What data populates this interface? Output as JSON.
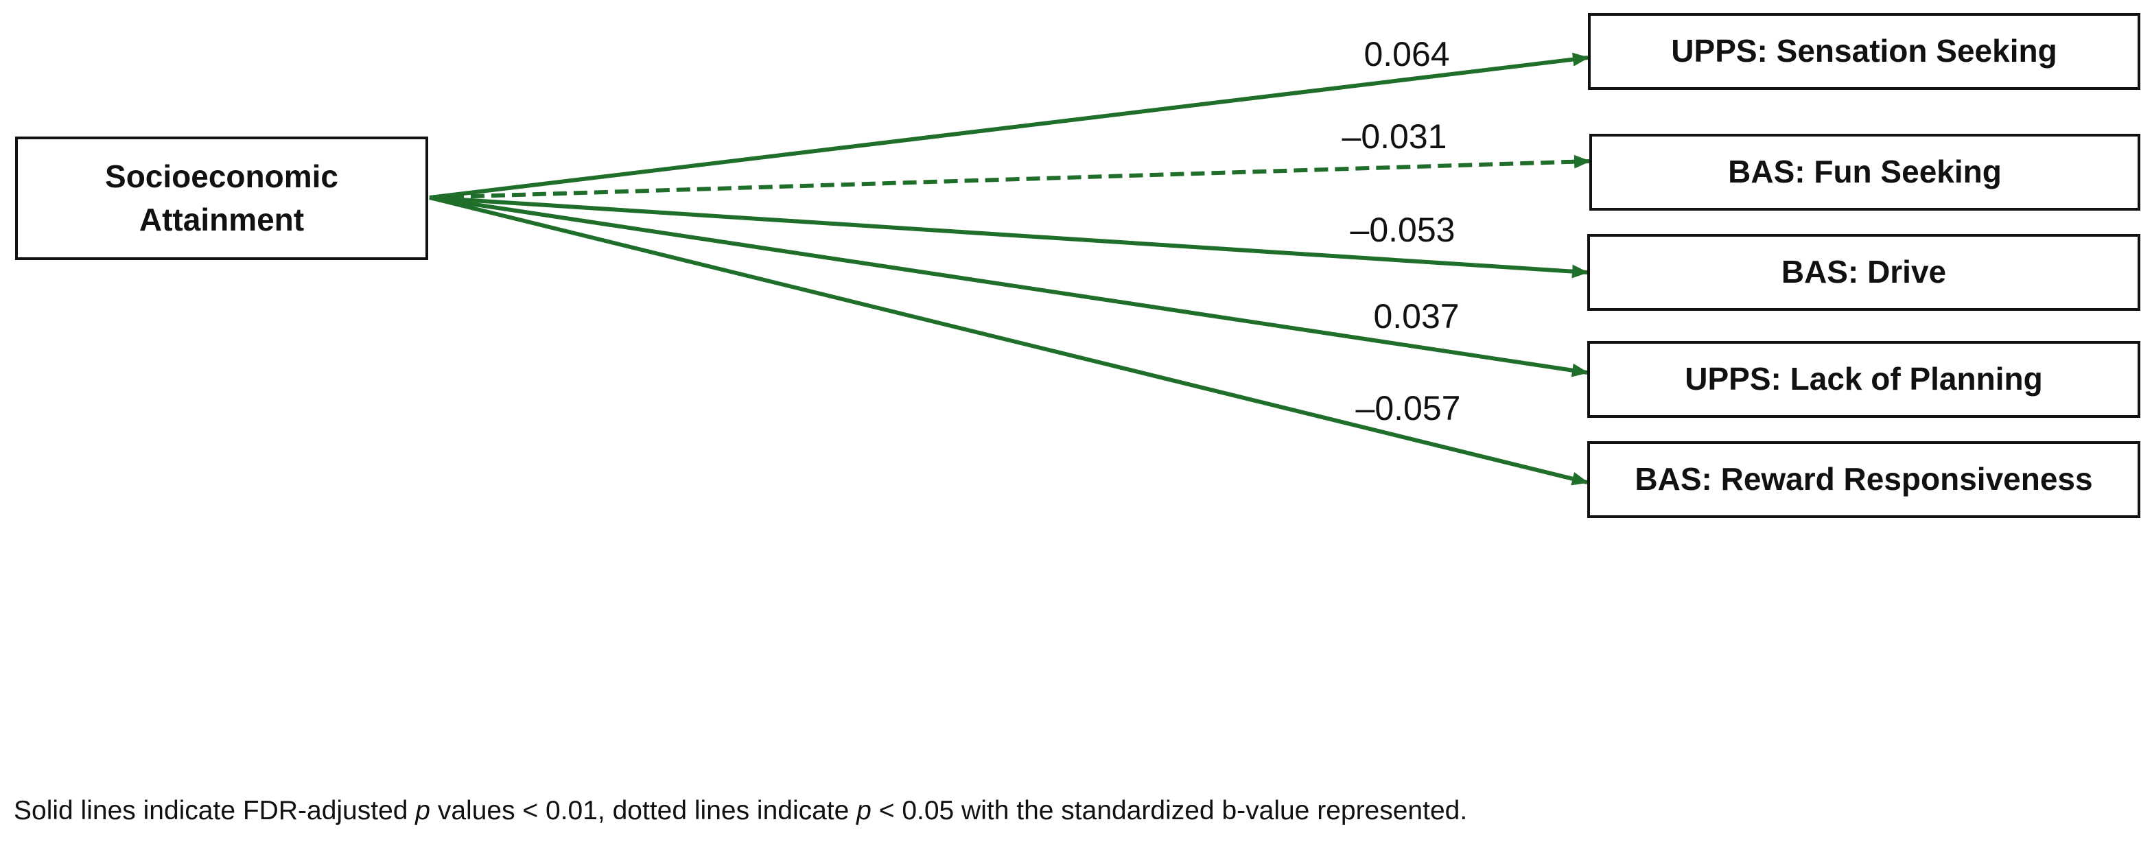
{
  "diagram": {
    "source": {
      "line1": "Socioeconomic",
      "line2": "Attainment"
    },
    "targets": [
      {
        "label": "UPPS: Sensation Seeking",
        "coefficient": "0.064",
        "line_style": "solid"
      },
      {
        "label": "BAS: Fun Seeking",
        "coefficient": "–0.031",
        "line_style": "dotted"
      },
      {
        "label": "BAS: Drive",
        "coefficient": "–0.053",
        "line_style": "solid"
      },
      {
        "label": "UPPS: Lack of Planning",
        "coefficient": "0.037",
        "line_style": "solid"
      },
      {
        "label": "BAS: Reward Responsiveness",
        "coefficient": "–0.057",
        "line_style": "solid"
      }
    ],
    "edge_color": "#1f6e2a"
  },
  "caption": {
    "part1": "Solid lines indicate FDR-adjusted ",
    "p1": "p",
    "part2": " values < 0.01, dotted lines indicate ",
    "p2": "p",
    "part3": " < 0.05 with the standardized b-value represented."
  }
}
